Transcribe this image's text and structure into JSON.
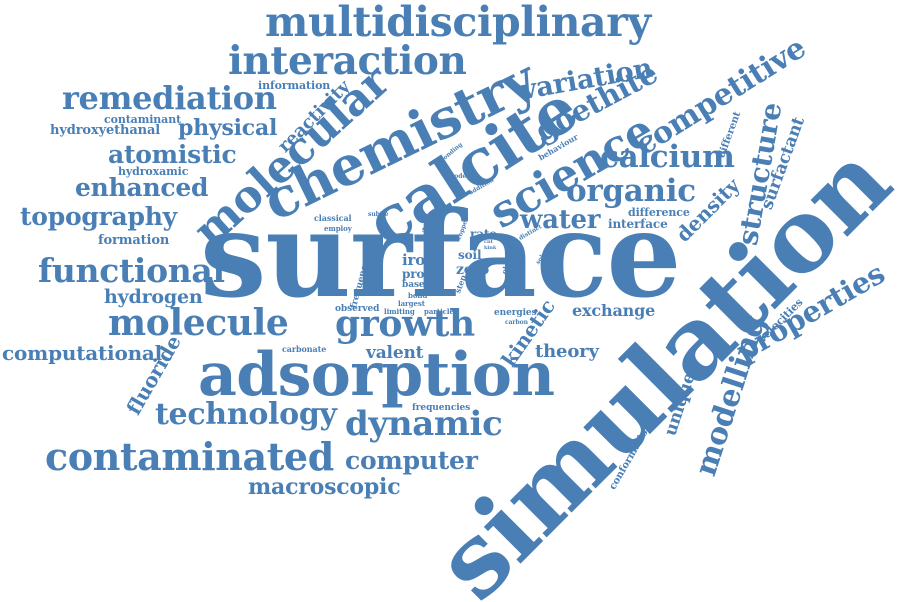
{
  "colors": {
    "word": "#4a7fb5",
    "background": "#ffffff"
  },
  "words": [
    {
      "id": "surface",
      "text": "surface"
    },
    {
      "id": "simulation",
      "text": "simulation"
    },
    {
      "id": "adsorption",
      "text": "adsorption"
    },
    {
      "id": "calcite",
      "text": "calcite"
    },
    {
      "id": "chemistry",
      "text": "chemistry"
    },
    {
      "id": "science",
      "text": "science"
    },
    {
      "id": "molecular",
      "text": "molecular"
    },
    {
      "id": "multidisciplinary",
      "text": "multidisciplinary"
    },
    {
      "id": "interaction",
      "text": "interaction"
    },
    {
      "id": "contaminated",
      "text": "contaminated"
    },
    {
      "id": "molecule",
      "text": "molecule"
    },
    {
      "id": "growth",
      "text": "growth"
    },
    {
      "id": "dynamic",
      "text": "dynamic"
    },
    {
      "id": "technology",
      "text": "technology"
    },
    {
      "id": "remediation",
      "text": "remediation"
    },
    {
      "id": "competitive",
      "text": "competitive"
    },
    {
      "id": "goethite",
      "text": "goethite"
    },
    {
      "id": "variation",
      "text": "variation"
    },
    {
      "id": "calcium",
      "text": "calcium"
    },
    {
      "id": "organic",
      "text": "organic"
    },
    {
      "id": "structure",
      "text": "structure"
    },
    {
      "id": "properties",
      "text": "properties"
    },
    {
      "id": "modelling",
      "text": "modelling"
    },
    {
      "id": "functional",
      "text": "functional"
    },
    {
      "id": "topography",
      "text": "topography"
    },
    {
      "id": "enhanced",
      "text": "enhanced"
    },
    {
      "id": "atomistic",
      "text": "atomistic"
    },
    {
      "id": "physical",
      "text": "physical"
    },
    {
      "id": "computer",
      "text": "computer"
    },
    {
      "id": "macroscopic",
      "text": "macroscopic"
    },
    {
      "id": "water",
      "text": "water"
    },
    {
      "id": "computational",
      "text": "computational"
    },
    {
      "id": "hydrogen",
      "text": "hydrogen"
    },
    {
      "id": "fluoride",
      "text": "fluoride"
    },
    {
      "id": "kinetic",
      "text": "kinetic"
    },
    {
      "id": "density",
      "text": "density"
    },
    {
      "id": "reactivity",
      "text": "reactivity"
    },
    {
      "id": "surfactant",
      "text": "surfactant"
    },
    {
      "id": "theory",
      "text": "theory"
    },
    {
      "id": "unique",
      "text": "unique"
    },
    {
      "id": "valent",
      "text": "valent"
    },
    {
      "id": "exchange",
      "text": "exchange"
    },
    {
      "id": "hydroxyethanal",
      "text": "hydroxyethanal"
    },
    {
      "id": "contaminant",
      "text": "contaminant"
    },
    {
      "id": "hydroxamic",
      "text": "hydroxamic"
    },
    {
      "id": "formation",
      "text": "formation"
    },
    {
      "id": "information",
      "text": "information"
    },
    {
      "id": "interface",
      "text": "interface"
    },
    {
      "id": "difference",
      "text": "difference"
    },
    {
      "id": "iron",
      "text": "iron"
    },
    {
      "id": "proc",
      "text": "proc"
    },
    {
      "id": "zero",
      "text": "zero"
    },
    {
      "id": "soil",
      "text": "soil"
    },
    {
      "id": "rate",
      "text": "rate"
    },
    {
      "id": "velocities",
      "text": "velocities"
    },
    {
      "id": "different",
      "text": "different"
    },
    {
      "id": "conformation",
      "text": "conformation"
    },
    {
      "id": "behaviour",
      "text": "behaviour"
    },
    {
      "id": "carbonate",
      "text": "carbonate"
    },
    {
      "id": "observed",
      "text": "observed"
    },
    {
      "id": "frequencies",
      "text": "frequencies"
    },
    {
      "id": "frequency",
      "text": "frequency"
    },
    {
      "id": "classical",
      "text": "classical"
    },
    {
      "id": "employ",
      "text": "employ"
    },
    {
      "id": "study",
      "text": "study"
    },
    {
      "id": "site",
      "text": "site"
    },
    {
      "id": "bonding",
      "text": "bonding"
    },
    {
      "id": "model",
      "text": "model"
    },
    {
      "id": "addition",
      "text": "addition"
    },
    {
      "id": "subtle",
      "text": "subtle"
    },
    {
      "id": "based",
      "text": "based"
    },
    {
      "id": "bond",
      "text": "bond"
    },
    {
      "id": "largest",
      "text": "largest"
    },
    {
      "id": "limiting",
      "text": "limiting"
    },
    {
      "id": "particle",
      "text": "particle"
    },
    {
      "id": "energies",
      "text": "energies"
    },
    {
      "id": "carbon",
      "text": "carbon"
    },
    {
      "id": "distinct",
      "text": "distinct"
    },
    {
      "id": "solution",
      "text": "solution"
    },
    {
      "id": "obtuse",
      "text": "obtuse"
    },
    {
      "id": "step",
      "text": "step"
    },
    {
      "id": "copper",
      "text": "copper"
    },
    {
      "id": "kink",
      "text": "kink"
    },
    {
      "id": "cnt",
      "text": "cnt"
    }
  ]
}
